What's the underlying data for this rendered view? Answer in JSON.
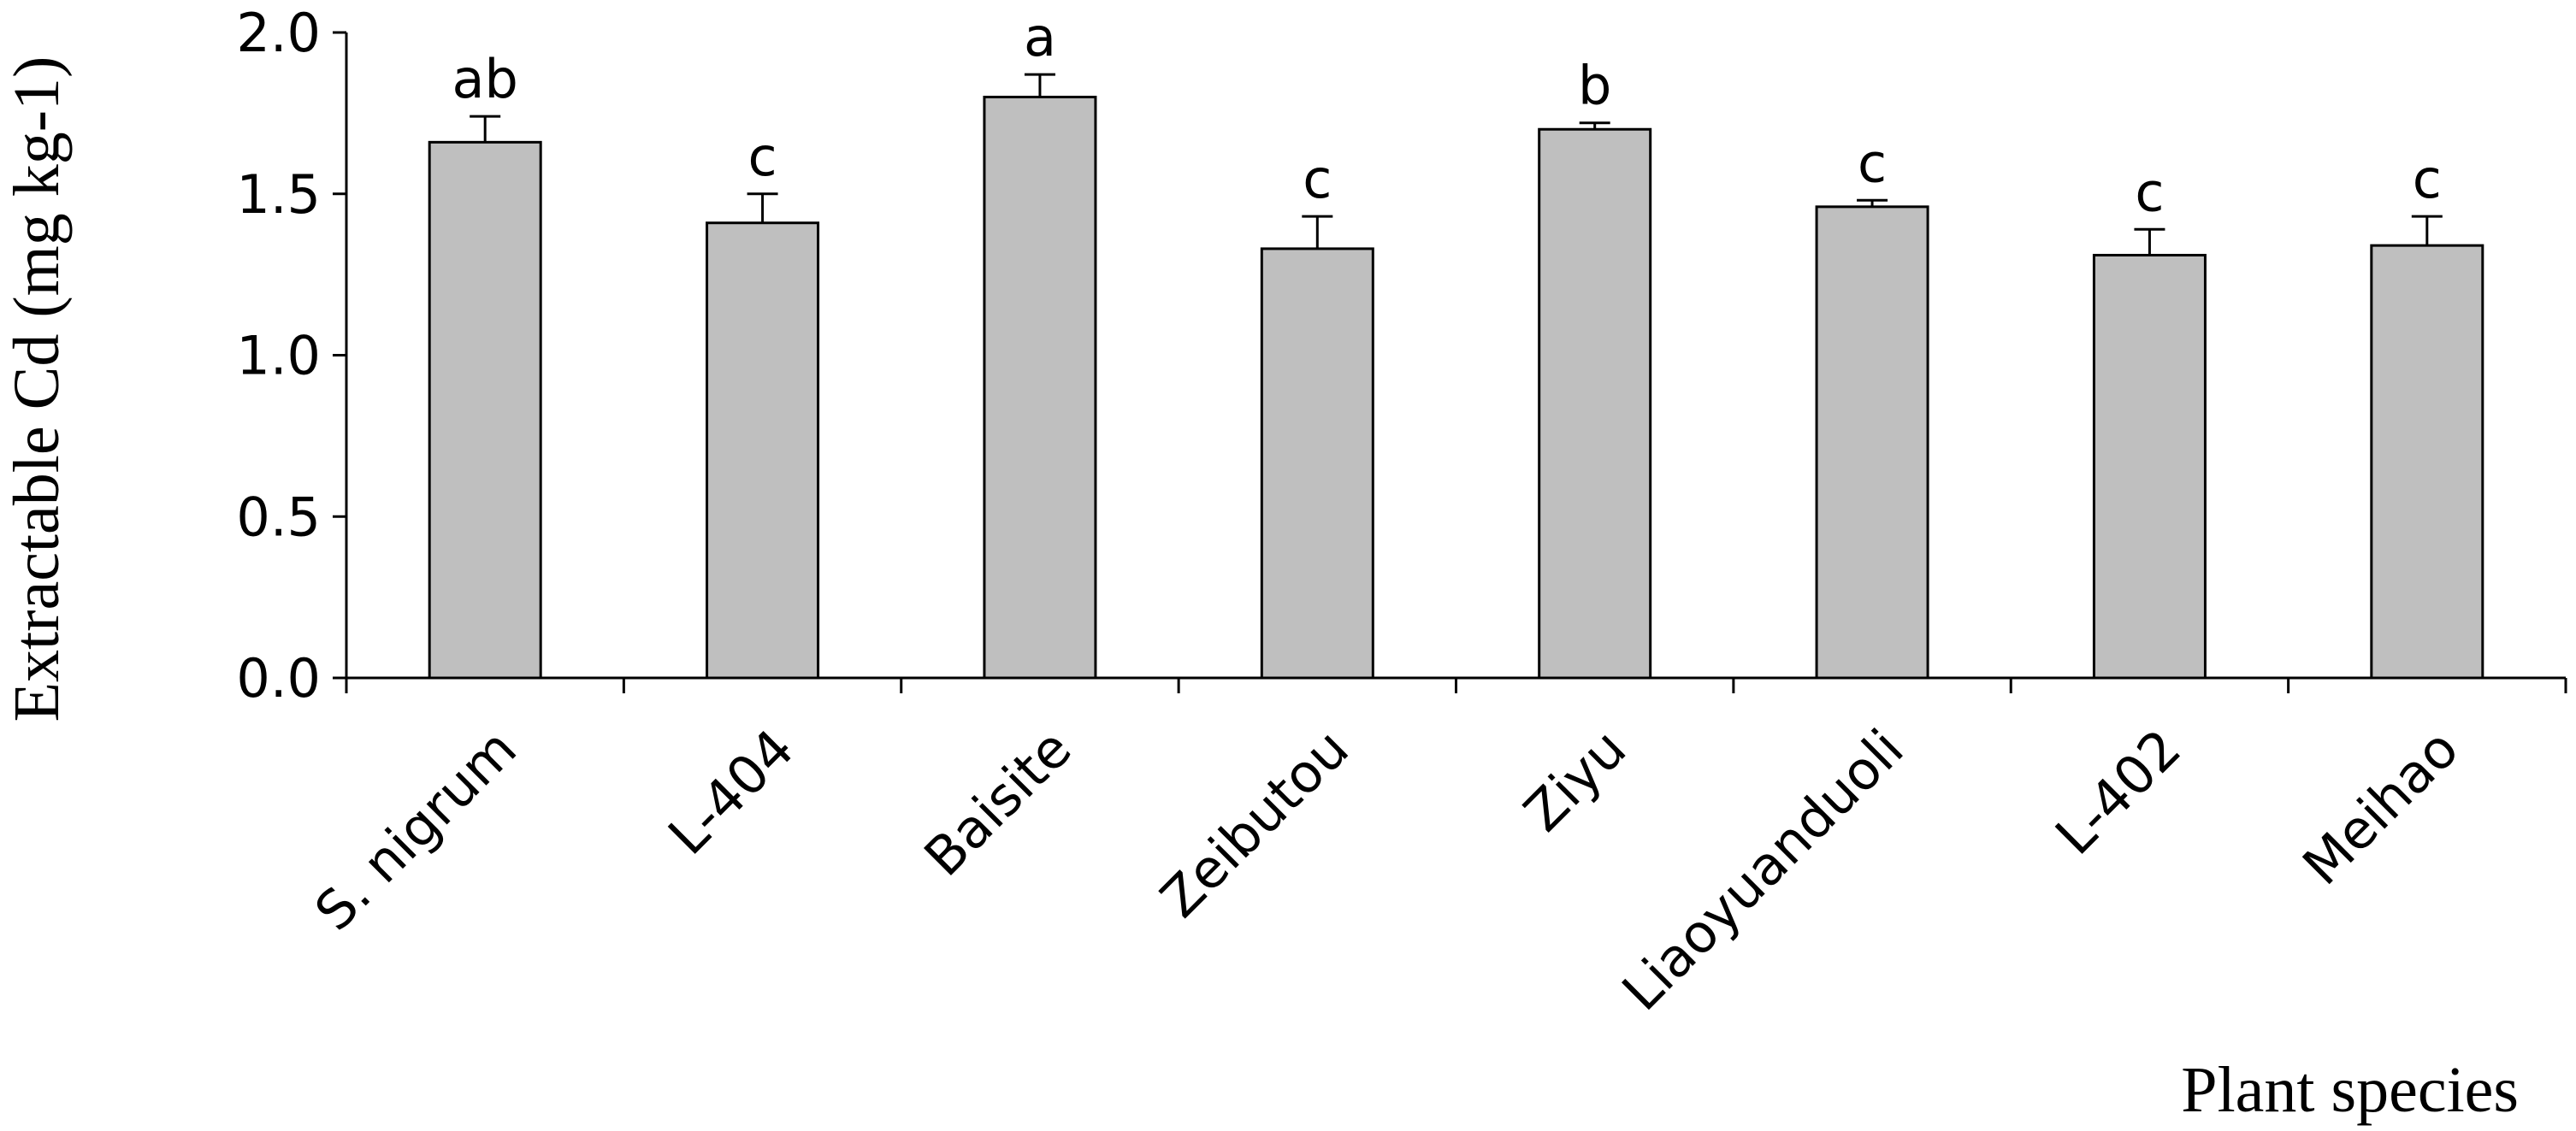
{
  "chart_data": {
    "type": "bar",
    "title": "",
    "xlabel": "Plant species",
    "ylabel": "Extractable Cd (mg kg-1)",
    "ylim": [
      0,
      2.0
    ],
    "yticks": [
      0.0,
      0.5,
      1.0,
      1.5,
      2.0
    ],
    "ytick_labels": [
      "0.0",
      "0.5",
      "1.0",
      "1.5",
      "2.0"
    ],
    "categories": [
      "S. nigrum",
      "L-404",
      "Baisite",
      "Zeibutou",
      "Ziyu",
      "Liaoyuanduoli",
      "L-402",
      "Meihao"
    ],
    "values": [
      1.66,
      1.41,
      1.8,
      1.33,
      1.7,
      1.46,
      1.31,
      1.34
    ],
    "errors": [
      0.08,
      0.09,
      0.07,
      0.1,
      0.02,
      0.02,
      0.08,
      0.09
    ],
    "significance_labels": [
      "ab",
      "c",
      "a",
      "c",
      "b",
      "c",
      "c",
      "c"
    ],
    "bar_color": "#bfbfbf",
    "grid": false,
    "legend": "none"
  }
}
